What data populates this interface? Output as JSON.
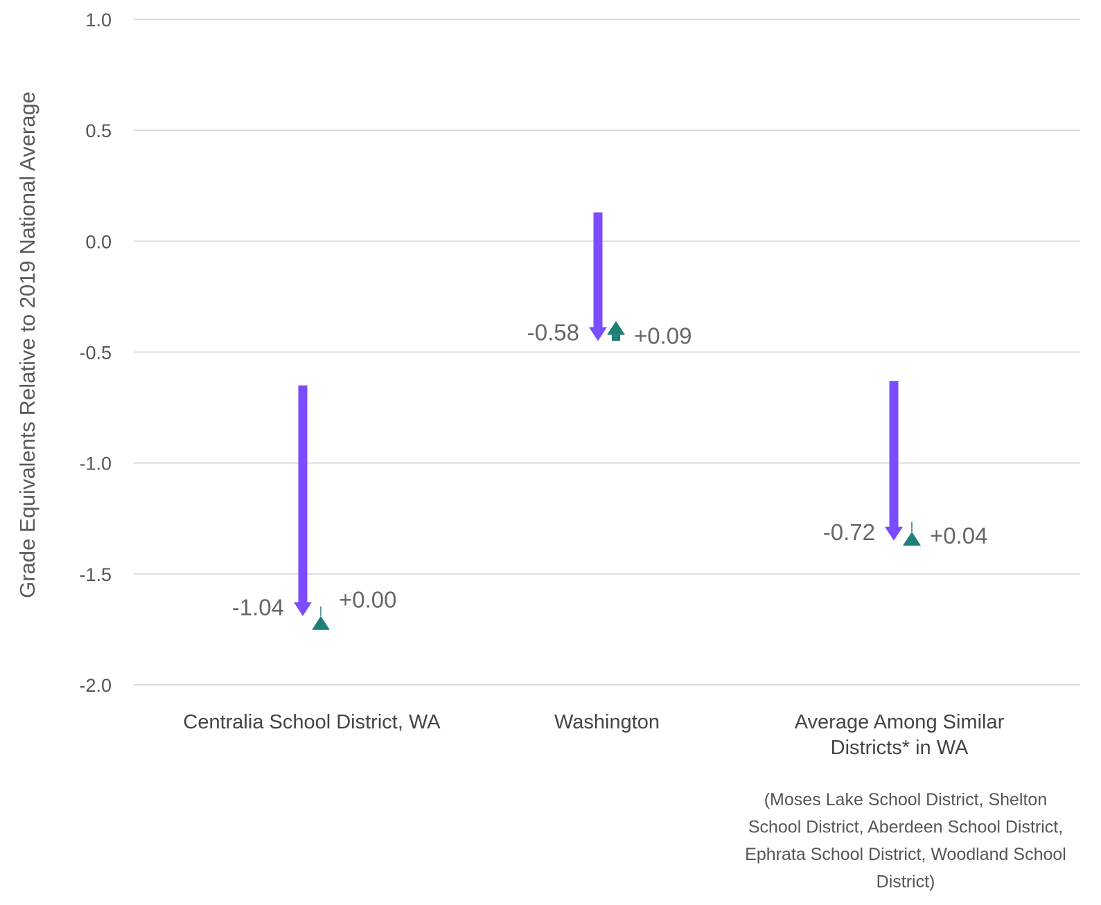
{
  "chart_data": {
    "type": "arrow",
    "title": "",
    "ylabel": "Grade Equivalents Relative to 2019 National Average",
    "xlabel": "",
    "ylim": [
      -2.0,
      1.0
    ],
    "yticks": [
      1.0,
      0.5,
      0.0,
      -0.5,
      -1.0,
      -1.5,
      -2.0
    ],
    "ytick_labels": [
      "1.0",
      "0.5",
      "0.0",
      "-0.5",
      "-1.0",
      "-1.5",
      "-2.0"
    ],
    "grid": true,
    "colors": {
      "decline": "#7b4dff",
      "recovery": "#1f8077"
    },
    "categories": [
      {
        "label_lines": [
          "Centralia School District, WA"
        ],
        "start": -0.65,
        "decline_end": -1.69,
        "recovery_start": -1.69,
        "recovery_end": -1.69,
        "decline_label": "-1.04",
        "recovery_label": "+0.00",
        "note_lines": []
      },
      {
        "label_lines": [
          "Washington"
        ],
        "start": 0.13,
        "decline_end": -0.45,
        "recovery_start": -0.45,
        "recovery_end": -0.36,
        "decline_label": "-0.58",
        "recovery_label": "+0.09",
        "note_lines": []
      },
      {
        "label_lines": [
          "Average Among Similar",
          "Districts* in WA"
        ],
        "start": -0.63,
        "decline_end": -1.35,
        "recovery_start": -1.35,
        "recovery_end": -1.31,
        "decline_label": "-0.72",
        "recovery_label": "+0.04",
        "note_lines": [
          "(Moses Lake School District, Shelton",
          "School District, Aberdeen School District,",
          "Ephrata School District, Woodland School",
          "District)"
        ]
      }
    ]
  }
}
